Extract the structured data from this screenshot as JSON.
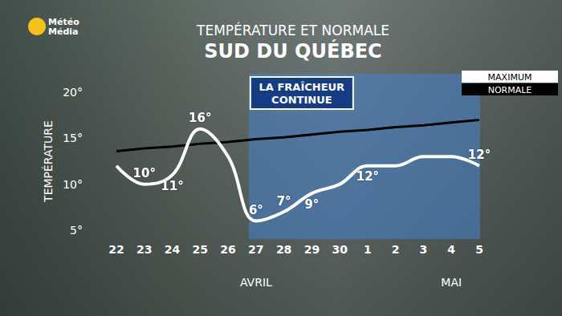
{
  "chart_data": {
    "type": "line",
    "title": "TEMPÉRATURE ET NORMALE",
    "subtitle": "SUD DU QUÉBEC",
    "logo": "Météo\nMédia",
    "y_label": "TEMPÉRATURE",
    "categories": [
      "22",
      "23",
      "24",
      "25",
      "26",
      "27",
      "28",
      "29",
      "30",
      "1",
      "2",
      "3",
      "4",
      "5"
    ],
    "x_groups": [
      {
        "at": "27",
        "label": "AVRIL"
      },
      {
        "at": "4",
        "label": "MAI"
      }
    ],
    "series": [
      {
        "name": "MAXIMUM",
        "color": "#ffffff",
        "values": [
          12,
          10,
          11,
          16,
          13,
          6,
          7,
          9,
          10,
          12,
          12,
          13,
          13,
          12
        ],
        "value_labels": [
          null,
          "10°",
          "11°",
          "16°",
          null,
          "6°",
          "7°",
          "9°",
          null,
          "12°",
          null,
          null,
          null,
          "12°"
        ]
      },
      {
        "name": "NORMALE",
        "color": "#000000",
        "values": [
          13.6,
          13.9,
          14.1,
          14.4,
          14.6,
          14.9,
          15.1,
          15.4,
          15.7,
          15.9,
          16.2,
          16.4,
          16.7,
          17.0
        ]
      }
    ],
    "annotations": [
      {
        "text": "LA FRAÎCHEUR\nCONTINUE",
        "from": "27",
        "to": "5"
      }
    ],
    "ylim": [
      5,
      20
    ],
    "yticks": [
      {
        "value": 5,
        "label": "5°"
      },
      {
        "value": 10,
        "label": "10°"
      },
      {
        "value": 15,
        "label": "15°"
      },
      {
        "value": 20,
        "label": "20°"
      }
    ],
    "grid": false,
    "legend": "upper right",
    "data_labels": true
  }
}
